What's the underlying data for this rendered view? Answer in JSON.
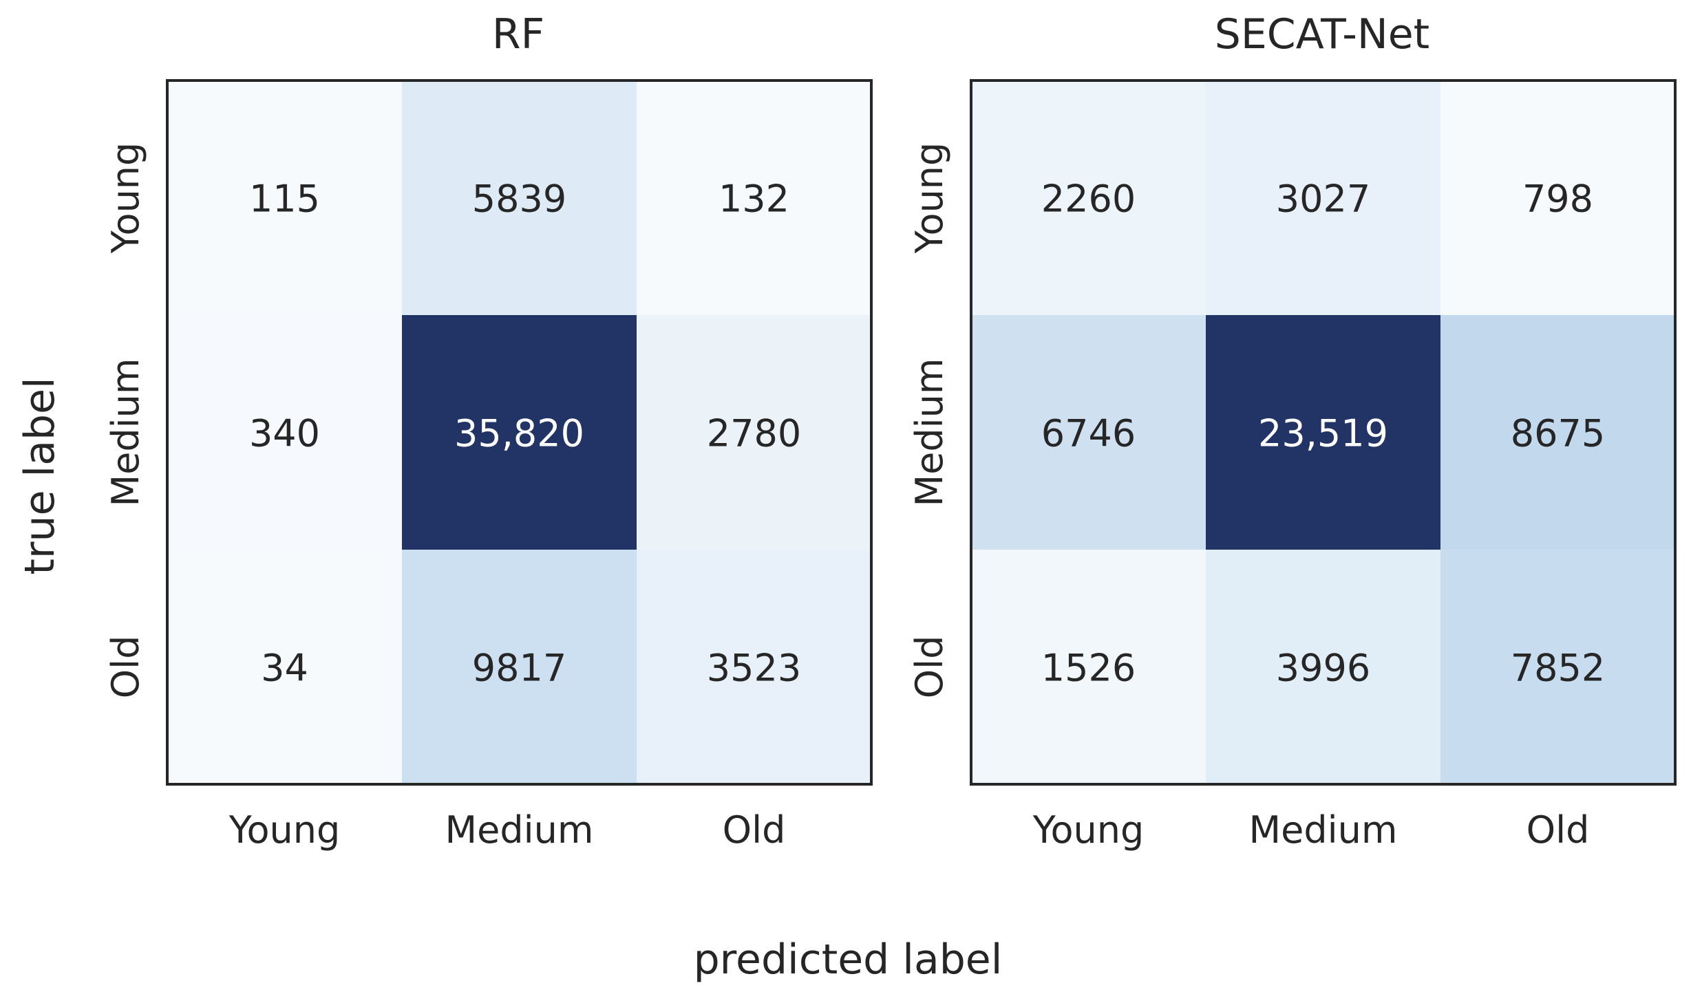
{
  "figure": {
    "xlabel": "predicted label",
    "ylabel": "true label"
  },
  "colors": {
    "low": "#f7fafd",
    "mid": "#c1d9ed",
    "high": "#223466",
    "text_dark": "#262626",
    "text_light": "#ffffff",
    "frame": "#262626"
  },
  "chart_data": [
    {
      "type": "heatmap",
      "title": "RF",
      "x_categories": [
        "Young",
        "Medium",
        "Old"
      ],
      "y_categories": [
        "Young",
        "Medium",
        "Old"
      ],
      "values": [
        [
          115,
          5839,
          132
        ],
        [
          340,
          35820,
          2780
        ],
        [
          34,
          9817,
          3523
        ]
      ],
      "cell_labels": [
        [
          "115",
          "5839",
          "132"
        ],
        [
          "340",
          "35,820",
          "2780"
        ],
        [
          "34",
          "9817",
          "3523"
        ]
      ],
      "xlabel": "predicted label",
      "ylabel": "true label",
      "colorbar": false
    },
    {
      "type": "heatmap",
      "title": "SECAT-Net",
      "x_categories": [
        "Young",
        "Medium",
        "Old"
      ],
      "y_categories": [
        "Young",
        "Medium",
        "Old"
      ],
      "values": [
        [
          2260,
          3027,
          798
        ],
        [
          6746,
          23519,
          8675
        ],
        [
          1526,
          3996,
          7852
        ]
      ],
      "cell_labels": [
        [
          "2260",
          "3027",
          "798"
        ],
        [
          "6746",
          "23,519",
          "8675"
        ],
        [
          "1526",
          "3996",
          "7852"
        ]
      ],
      "xlabel": "predicted label",
      "ylabel": "true label",
      "colorbar": false
    }
  ]
}
